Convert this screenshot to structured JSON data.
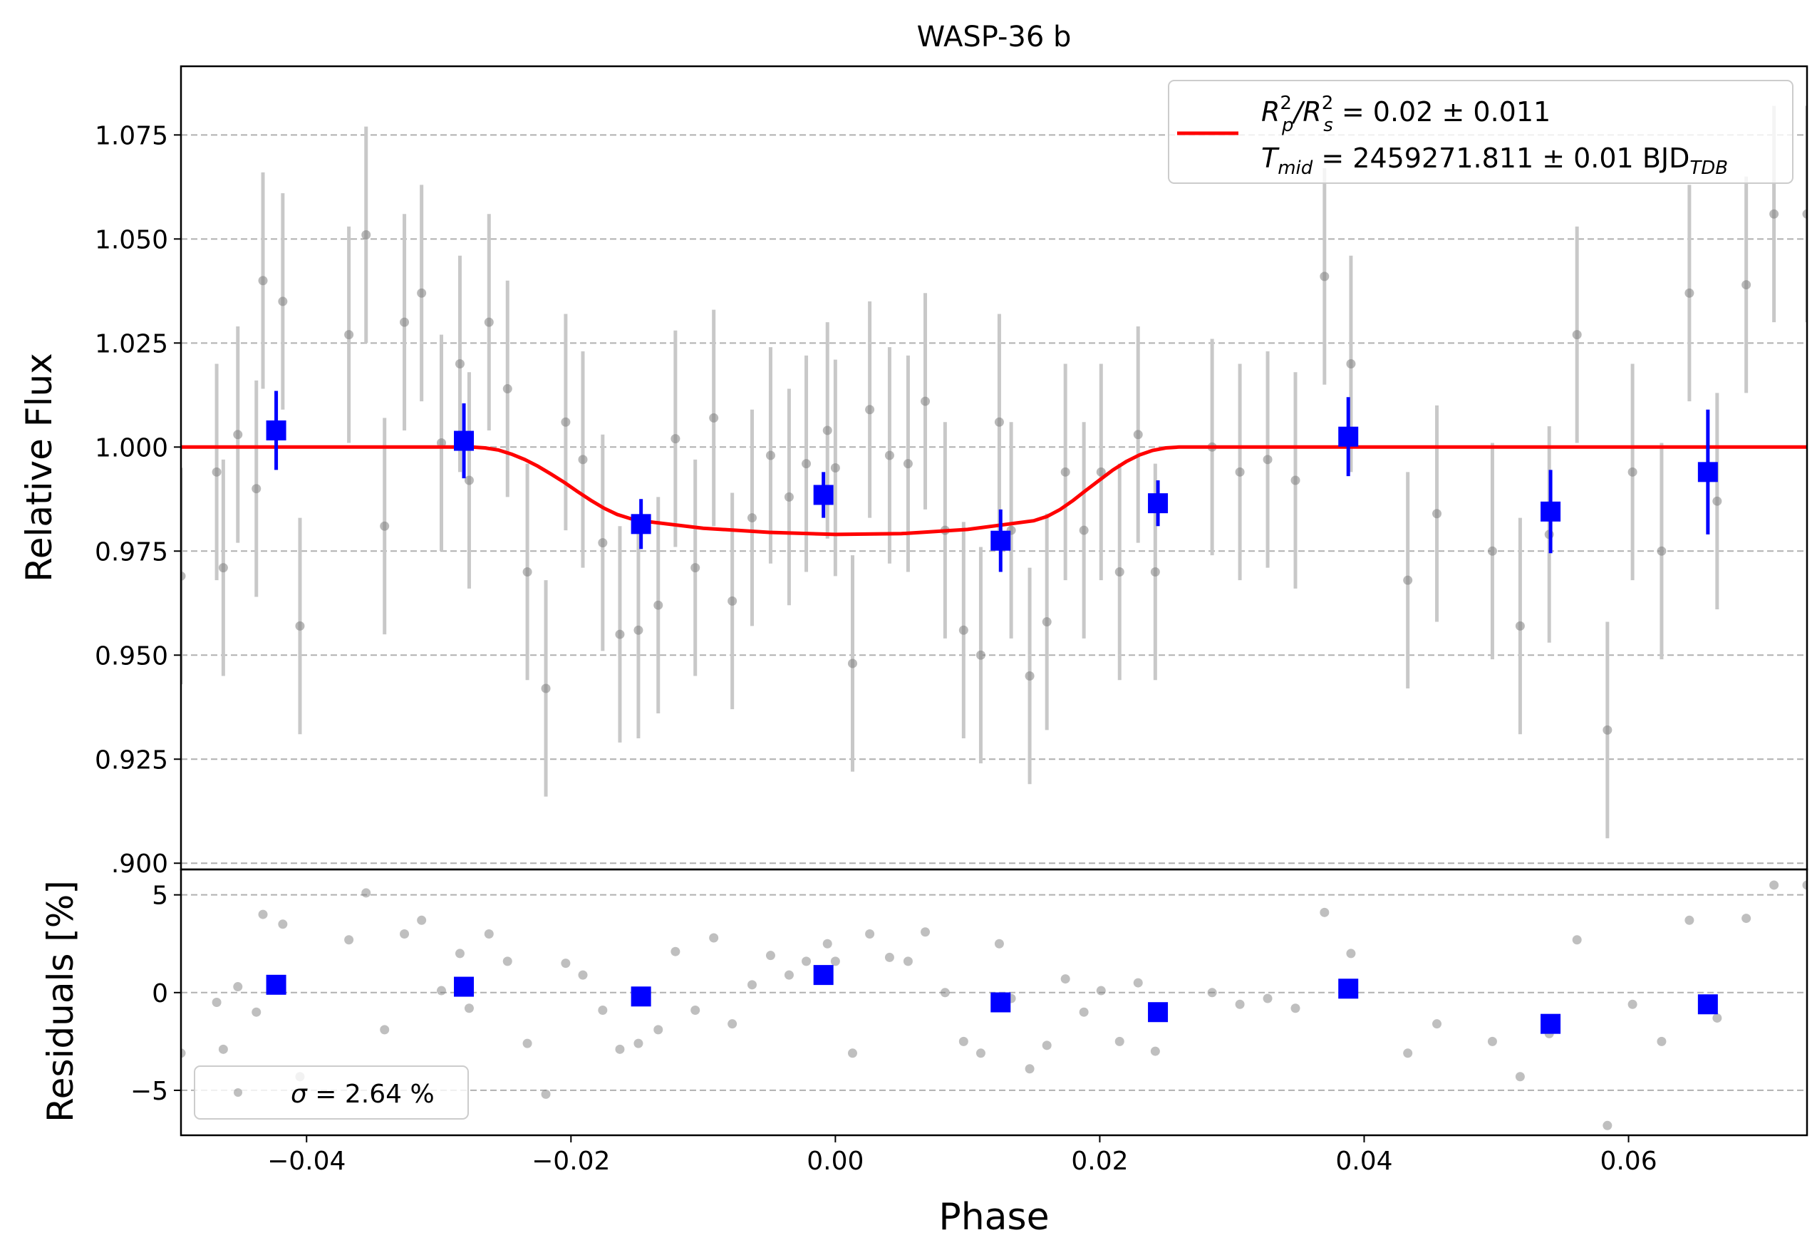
{
  "chart_data": {
    "type": "scatter",
    "title": "WASP-36 b",
    "xlabel": "Phase",
    "xlim": [
      -0.0495,
      0.0735
    ],
    "xticks": [
      -0.04,
      -0.02,
      0.0,
      0.02,
      0.04,
      0.06
    ],
    "xtick_labels": [
      "−0.04",
      "−0.02",
      "0.00",
      "0.02",
      "0.04",
      "0.06"
    ],
    "grid": "horizontal dashed",
    "colors": {
      "raw": "#808080",
      "raw_err": "#c8c8c8",
      "binned": "#0000ff",
      "model": "#ff0000",
      "grid": "#b0b0b0"
    },
    "top_panel": {
      "ylabel": "Relative Flux",
      "ylim": [
        0.8985,
        1.0915
      ],
      "yticks": [
        0.9,
        0.925,
        0.95,
        0.975,
        1.0,
        1.025,
        1.05,
        1.075
      ],
      "ytick_labels": [
        ".900",
        "0.925",
        "0.950",
        "0.975",
        "1.000",
        "1.025",
        "1.050",
        "1.075"
      ],
      "legend": {
        "location": "upper right",
        "line1": {
          "a": "R",
          "a_sup": "2",
          "a_sub": "p",
          "mid": "/R",
          "b_sup": "2",
          "b_sub": "s",
          "rest": " = 0.02 ± 0.011"
        },
        "line2": {
          "sym": "T",
          "sym_sub": "mid",
          "rest": " = 2459271.811 ± 0.01 BJD",
          "rest_sub": "TDB"
        }
      },
      "raw_points": {
        "name": "data",
        "x": [
          -0.0495,
          -0.0468,
          -0.0463,
          -0.0452,
          -0.0438,
          -0.0433,
          -0.0418,
          -0.0405,
          -0.0368,
          -0.0355,
          -0.0341,
          -0.0326,
          -0.0313,
          -0.0298,
          -0.0284,
          -0.0277,
          -0.0262,
          -0.0248,
          -0.0233,
          -0.0219,
          -0.0204,
          -0.0191,
          -0.0176,
          -0.0163,
          -0.0149,
          -0.0134,
          -0.0121,
          -0.0106,
          -0.0092,
          -0.0078,
          -0.0063,
          -0.0049,
          -0.0035,
          -0.0022,
          -0.0006,
          0.0,
          0.0013,
          0.0026,
          0.0041,
          0.0055,
          0.0068,
          0.0083,
          0.0097,
          0.011,
          0.0124,
          0.0133,
          0.0147,
          0.016,
          0.0174,
          0.0188,
          0.0201,
          0.0215,
          0.0229,
          0.0242,
          0.0285,
          0.0306,
          0.0327,
          0.0348,
          0.037,
          0.039,
          0.0433,
          0.0455,
          0.0497,
          0.0518,
          0.054,
          0.0561,
          0.0584,
          0.0603,
          0.0625,
          0.0646,
          0.0667,
          0.0689,
          0.071,
          0.0735
        ],
        "y": [
          0.969,
          0.994,
          0.971,
          1.003,
          0.99,
          1.04,
          1.035,
          0.957,
          1.027,
          1.051,
          0.981,
          1.03,
          1.037,
          1.001,
          1.02,
          0.992,
          1.03,
          1.014,
          0.97,
          0.942,
          1.006,
          0.997,
          0.977,
          0.955,
          0.956,
          0.962,
          1.002,
          0.971,
          1.007,
          0.963,
          0.983,
          0.998,
          0.988,
          0.996,
          1.004,
          0.995,
          0.948,
          1.009,
          0.998,
          0.996,
          1.011,
          0.98,
          0.956,
          0.95,
          1.006,
          0.98,
          0.945,
          0.958,
          0.994,
          0.98,
          0.994,
          0.97,
          1.003,
          0.97,
          1.0,
          0.994,
          0.997,
          0.992,
          1.041,
          1.02,
          0.968,
          0.984,
          0.975,
          0.957,
          0.979,
          1.027,
          0.932,
          0.994,
          0.975,
          1.037,
          0.987,
          1.039,
          1.056,
          1.056
        ],
        "yerr": 0.026
      },
      "binned_points": {
        "x": [
          -0.0423,
          -0.0281,
          -0.0147,
          -0.0009,
          0.0125,
          0.0244,
          0.0388,
          0.0541,
          0.066
        ],
        "y": [
          1.004,
          1.0015,
          0.9815,
          0.9885,
          0.9775,
          0.9865,
          1.0025,
          0.9845,
          0.994
        ],
        "yerr": [
          0.0095,
          0.009,
          0.006,
          0.0055,
          0.0075,
          0.0055,
          0.0095,
          0.01,
          0.015
        ]
      },
      "model": {
        "name": "transit model",
        "x": [
          -0.0495,
          -0.0275,
          -0.0265,
          -0.0255,
          -0.0245,
          -0.0235,
          -0.0225,
          -0.0215,
          -0.0205,
          -0.0195,
          -0.0185,
          -0.0175,
          -0.0165,
          -0.0155,
          -0.0145,
          -0.01,
          -0.005,
          0.0,
          0.005,
          0.01,
          0.015,
          0.016,
          0.017,
          0.018,
          0.019,
          0.02,
          0.021,
          0.022,
          0.023,
          0.024,
          0.025,
          0.026,
          0.027,
          0.0735
        ],
        "y": [
          1.0,
          1.0,
          0.9998,
          0.9993,
          0.9983,
          0.997,
          0.9954,
          0.9935,
          0.9915,
          0.9893,
          0.9872,
          0.9853,
          0.9838,
          0.9828,
          0.9822,
          0.9805,
          0.9795,
          0.979,
          0.9792,
          0.9802,
          0.9823,
          0.9833,
          0.985,
          0.9872,
          0.9897,
          0.9921,
          0.9945,
          0.9965,
          0.9981,
          0.9992,
          0.9998,
          1.0,
          1.0,
          1.0
        ]
      }
    },
    "bottom_panel": {
      "ylabel": "Residuals [%]",
      "ylim": [
        -7.3,
        6.3
      ],
      "yticks": [
        -5,
        0,
        5
      ],
      "ytick_labels": [
        "−5",
        "0",
        "5"
      ],
      "legend": {
        "location": "lower left",
        "label": " = 2.64 %",
        "symbol": "σ"
      },
      "raw_residuals": {
        "x": [
          -0.0495,
          -0.0468,
          -0.0463,
          -0.0452,
          -0.0438,
          -0.0433,
          -0.0418,
          -0.0405,
          -0.0368,
          -0.0355,
          -0.0341,
          -0.0326,
          -0.0313,
          -0.0298,
          -0.0284,
          -0.0277,
          -0.0262,
          -0.0248,
          -0.0233,
          -0.0219,
          -0.0204,
          -0.0191,
          -0.0176,
          -0.0163,
          -0.0149,
          -0.0134,
          -0.0121,
          -0.0106,
          -0.0092,
          -0.0078,
          -0.0063,
          -0.0049,
          -0.0035,
          -0.0022,
          -0.0006,
          0.0,
          0.0013,
          0.0026,
          0.0041,
          0.0055,
          0.0068,
          0.0083,
          0.0097,
          0.011,
          0.0124,
          0.0133,
          0.0147,
          0.016,
          0.0174,
          0.0188,
          0.0201,
          0.0215,
          0.0229,
          0.0242,
          0.0285,
          0.0306,
          0.0327,
          0.0348,
          0.037,
          0.039,
          0.0433,
          0.0455,
          0.0497,
          0.0518,
          0.054,
          0.0561,
          0.0584,
          0.0603,
          0.0625,
          0.0646,
          0.0667,
          0.0689,
          0.071,
          0.0735
        ],
        "y": [
          -3.1,
          -0.5,
          -2.9,
          0.3,
          -1.0,
          4.0,
          3.5,
          -4.3,
          2.7,
          5.1,
          -1.9,
          3.0,
          3.7,
          0.1,
          2.0,
          -0.8,
          3.0,
          1.6,
          -2.6,
          -5.2,
          1.5,
          0.9,
          -0.9,
          -2.9,
          -2.6,
          -1.9,
          2.1,
          -0.9,
          2.8,
          -1.6,
          0.4,
          1.9,
          0.9,
          1.6,
          2.5,
          1.6,
          -3.1,
          3.0,
          1.8,
          1.6,
          3.1,
          0.0,
          -2.5,
          -3.1,
          2.5,
          -0.3,
          -3.9,
          -2.7,
          0.7,
          -1.0,
          0.1,
          -2.5,
          0.5,
          -3.0,
          0.0,
          -0.6,
          -0.3,
          -0.8,
          4.1,
          2.0,
          -3.1,
          -1.6,
          -2.5,
          -4.3,
          -2.1,
          2.7,
          -6.8,
          -0.6,
          -2.5,
          3.7,
          -1.3,
          3.8,
          5.5,
          5.5
        ]
      },
      "binned_residuals": {
        "x": [
          -0.0423,
          -0.0281,
          -0.0147,
          -0.0009,
          0.0125,
          0.0244,
          0.0388,
          0.0541,
          0.066
        ],
        "y": [
          0.4,
          0.3,
          -0.2,
          0.9,
          -0.5,
          -1.0,
          0.2,
          -1.6,
          -0.6
        ]
      }
    }
  }
}
